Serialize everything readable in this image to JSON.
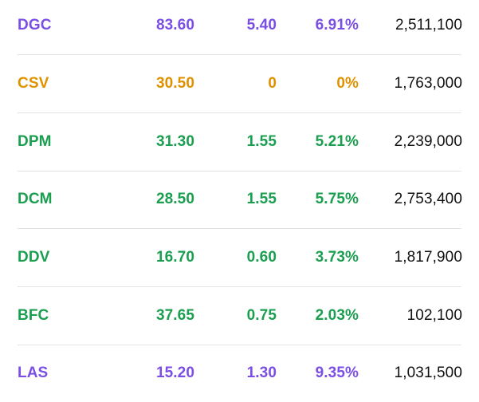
{
  "colors": {
    "ceiling": "#7b4ee6",
    "reference": "#df9100",
    "up": "#1a9e4f",
    "volume": "#111111",
    "divider": "#e3e3e6"
  },
  "stocks": [
    {
      "symbol": "DGC",
      "price": "83.60",
      "change": "5.40",
      "percent": "6.91%",
      "volume": "2,511,100",
      "status": "ceiling"
    },
    {
      "symbol": "CSV",
      "price": "30.50",
      "change": "0",
      "percent": "0%",
      "volume": "1,763,000",
      "status": "reference"
    },
    {
      "symbol": "DPM",
      "price": "31.30",
      "change": "1.55",
      "percent": "5.21%",
      "volume": "2,239,000",
      "status": "up"
    },
    {
      "symbol": "DCM",
      "price": "28.50",
      "change": "1.55",
      "percent": "5.75%",
      "volume": "2,753,400",
      "status": "up"
    },
    {
      "symbol": "DDV",
      "price": "16.70",
      "change": "0.60",
      "percent": "3.73%",
      "volume": "1,817,900",
      "status": "up"
    },
    {
      "symbol": "BFC",
      "price": "37.65",
      "change": "0.75",
      "percent": "2.03%",
      "volume": "102,100",
      "status": "up"
    },
    {
      "symbol": "LAS",
      "price": "15.20",
      "change": "1.30",
      "percent": "9.35%",
      "volume": "1,031,500",
      "status": "ceiling"
    }
  ]
}
